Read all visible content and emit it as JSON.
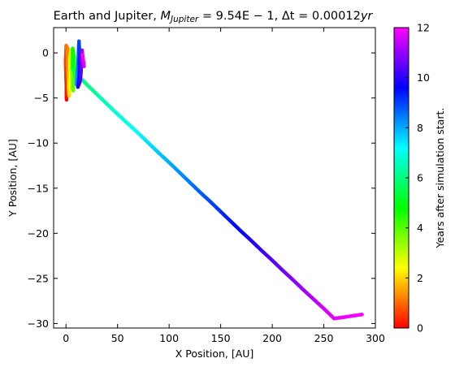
{
  "chart_data": [
    {
      "type": "scatter",
      "title": "Earth and Jupiter, M_Jupiter = 9.54E−1, Δt = 0.00012yr",
      "title_parts": {
        "prefix": "Earth and Jupiter, ",
        "m": "M",
        "m_sub": "Jupiter",
        "m_value": " = 9.54E − 1, ",
        "delta": "Δt = 0.00012",
        "unit": "yr"
      },
      "xlabel": "X Position, [AU]",
      "ylabel": "Y Position, [AU]",
      "xlim": [
        -12,
        300
      ],
      "ylim": [
        -30.5,
        2.8
      ],
      "xticks": [
        0,
        50,
        100,
        150,
        200,
        250,
        300
      ],
      "yticks": [
        0,
        -5,
        -10,
        -15,
        -20,
        -25,
        -30
      ],
      "grid": false,
      "color_by": "time",
      "series": [
        {
          "points": [
            [
              0.5,
              -5.2,
              0.0
            ],
            [
              0.3,
              -3.5,
              0.3
            ],
            [
              -0.4,
              -1.0,
              0.6
            ],
            [
              0.2,
              0.8,
              0.9
            ],
            [
              1.5,
              0.5,
              1.2
            ],
            [
              2.0,
              -2.0,
              1.5
            ],
            [
              2.5,
              -4.0,
              1.8
            ],
            [
              3.0,
              -4.8,
              2.1
            ],
            [
              4.2,
              -3.0,
              2.4
            ],
            [
              4.0,
              -0.5,
              2.7
            ],
            [
              4.8,
              0.3,
              3.0
            ],
            [
              5.5,
              -1.5,
              3.3
            ],
            [
              6.2,
              -3.8,
              3.6
            ],
            [
              7.0,
              -4.2,
              3.9
            ],
            [
              7.6,
              -2.5,
              4.2
            ],
            [
              7.8,
              -0.5,
              4.5
            ],
            [
              6.5,
              0.5,
              4.8
            ],
            [
              6.5,
              -1.8,
              5.1
            ],
            [
              7.2,
              -1.8,
              5.4
            ],
            [
              9.0,
              -2.4,
              5.6
            ],
            [
              15,
              -2.9,
              5.8
            ],
            [
              20,
              -3.5,
              6.0
            ],
            [
              30,
              -4.6,
              6.3
            ],
            [
              40,
              -5.7,
              6.55
            ],
            [
              50,
              -6.8,
              6.8
            ],
            [
              60,
              -7.85,
              7.0
            ],
            [
              70,
              -8.9,
              7.25
            ],
            [
              80,
              -10.0,
              7.5
            ],
            [
              90,
              -11.1,
              7.7
            ],
            [
              100,
              -12.15,
              7.95
            ],
            [
              110,
              -13.25,
              8.2
            ],
            [
              120,
              -14.35,
              8.45
            ],
            [
              130,
              -15.45,
              8.7
            ],
            [
              140,
              -16.5,
              8.9
            ],
            [
              150,
              -17.6,
              9.15
            ],
            [
              160,
              -18.7,
              9.4
            ],
            [
              170,
              -19.8,
              9.65
            ],
            [
              180,
              -20.85,
              9.9
            ],
            [
              190,
              -21.95,
              10.1
            ],
            [
              200,
              -23.0,
              10.35
            ],
            [
              210,
              -24.1,
              10.6
            ],
            [
              220,
              -25.15,
              10.85
            ],
            [
              230,
              -26.25,
              11.05
            ],
            [
              240,
              -27.3,
              11.3
            ],
            [
              250,
              -28.35,
              11.55
            ],
            [
              260,
              -29.45,
              11.75
            ],
            [
              287,
              -29.0,
              12.0
            ]
          ]
        },
        {
          "points": [
            [
              10.0,
              -3.5,
              8.0
            ],
            [
              11.0,
              -2.0,
              8.3
            ],
            [
              12.0,
              -0.5,
              8.6
            ],
            [
              12.6,
              1.3,
              8.9
            ],
            [
              13.2,
              -0.5,
              9.2
            ],
            [
              12.8,
              -2.5,
              9.5
            ],
            [
              11.5,
              -3.8,
              9.8
            ],
            [
              13.5,
              -3.2,
              10.1
            ],
            [
              14.5,
              -2.2,
              10.4
            ],
            [
              15.0,
              -0.5,
              10.7
            ],
            [
              15.5,
              0.3,
              11.0
            ],
            [
              16.5,
              -0.8,
              11.3
            ],
            [
              17.5,
              -1.5,
              11.6
            ],
            [
              16.0,
              -0.2,
              12.0
            ]
          ]
        }
      ],
      "colorbar": {
        "label": "Years after simulation start.",
        "range": [
          0,
          12
        ],
        "ticks": [
          0,
          2,
          4,
          6,
          8,
          10,
          12
        ],
        "colormap": "hsv",
        "stops": [
          "#ff0000",
          "#ffff00",
          "#00ff00",
          "#00ffff",
          "#0000ff",
          "#ff00ff"
        ]
      }
    }
  ]
}
